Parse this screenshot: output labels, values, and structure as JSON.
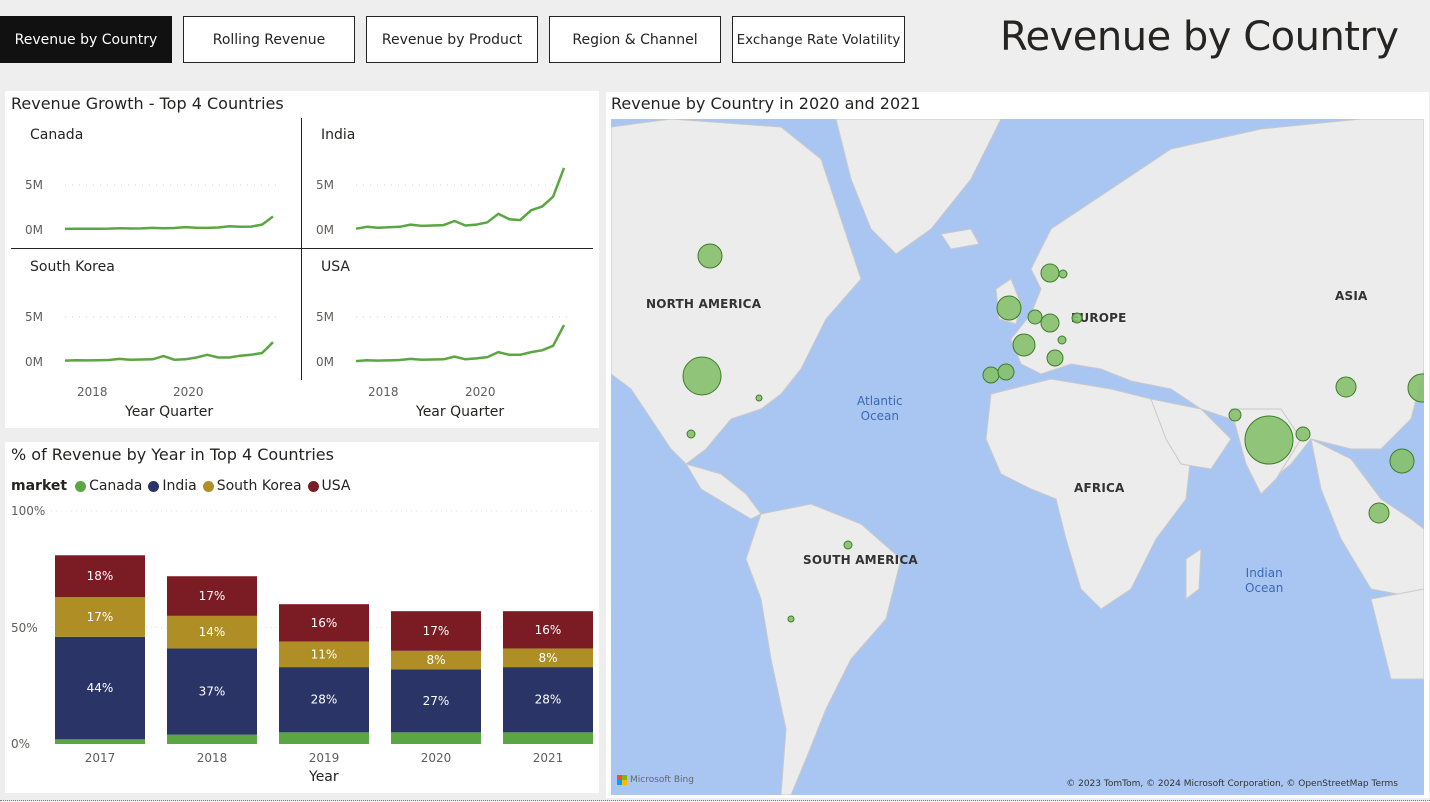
{
  "nav": {
    "buttons": [
      {
        "label": "Revenue by Country",
        "active": true
      },
      {
        "label": "Rolling Revenue",
        "active": false
      },
      {
        "label": "Revenue by Product",
        "active": false
      },
      {
        "label": "Region & Channel",
        "active": false
      },
      {
        "label": "Exchange Rate Volatility",
        "active": false
      }
    ]
  },
  "page_title": "Revenue by Country",
  "growth_panel": {
    "title": "Revenue Growth - Top 4 Countries",
    "y_ticks": [
      "5M",
      "0M"
    ],
    "x_ticks": [
      "2018",
      "2020"
    ],
    "x_title": "Year Quarter"
  },
  "share_panel": {
    "title": "% of Revenue by Year in Top 4 Countries",
    "legend_title": "market"
  },
  "map_panel": {
    "title": "Revenue by Country in 2020 and 2021",
    "regions": [
      "NORTH AMERICA",
      "EUROPE",
      "ASIA",
      "AFRICA",
      "SOUTH AMERICA"
    ],
    "oceans": [
      "Atlantic\nOcean",
      "Indian\nOcean"
    ],
    "attribution": "© 2023 TomTom, © 2024 Microsoft Corporation, © OpenStreetMap  Terms",
    "provider": "Microsoft Bing"
  },
  "colors": {
    "Canada": "#5ba642",
    "India": "#2b3467",
    "South Korea": "#b08e26",
    "USA": "#7b1c24",
    "line": "#5ba642",
    "bubble_fill": "#86c06c",
    "bubble_stroke": "#3e7d2a",
    "land": "#ededed",
    "ocean": "#a9c6f2"
  },
  "chart_data": [
    {
      "type": "line",
      "name": "small-multiples",
      "title": "Revenue Growth - Top 4 Countries",
      "xlabel": "Year Quarter",
      "x": [
        "2017 Q1",
        "2017 Q2",
        "2017 Q3",
        "2017 Q4",
        "2018 Q1",
        "2018 Q2",
        "2018 Q3",
        "2018 Q4",
        "2019 Q1",
        "2019 Q2",
        "2019 Q3",
        "2019 Q4",
        "2020 Q1",
        "2020 Q2",
        "2020 Q3",
        "2020 Q4",
        "2021 Q1",
        "2021 Q2",
        "2021 Q3",
        "2021 Q4"
      ],
      "ylim": [
        0,
        6500000
      ],
      "series": [
        {
          "name": "Canada",
          "values": [
            120000,
            150000,
            130000,
            140000,
            160000,
            200000,
            170000,
            180000,
            230000,
            200000,
            220000,
            320000,
            250000,
            230000,
            280000,
            420000,
            360000,
            380000,
            600000,
            1500000
          ]
        },
        {
          "name": "India",
          "values": [
            150000,
            350000,
            250000,
            300000,
            350000,
            600000,
            450000,
            500000,
            550000,
            1000000,
            500000,
            600000,
            850000,
            1800000,
            1200000,
            1100000,
            2200000,
            2600000,
            3700000,
            6900000
          ]
        },
        {
          "name": "South Korea",
          "values": [
            150000,
            200000,
            180000,
            200000,
            220000,
            350000,
            250000,
            280000,
            300000,
            650000,
            250000,
            300000,
            500000,
            800000,
            500000,
            500000,
            700000,
            800000,
            1000000,
            2200000
          ]
        },
        {
          "name": "USA",
          "values": [
            100000,
            200000,
            150000,
            180000,
            220000,
            350000,
            250000,
            280000,
            300000,
            600000,
            300000,
            400000,
            550000,
            1100000,
            800000,
            800000,
            1100000,
            1300000,
            1800000,
            4100000
          ]
        }
      ]
    },
    {
      "type": "bar",
      "name": "stacked-percent",
      "title": "% of Revenue by Year in Top 4 Countries",
      "xlabel": "Year",
      "categories": [
        "2017",
        "2018",
        "2019",
        "2020",
        "2021"
      ],
      "y_ticks": [
        "100%",
        "50%",
        "0%"
      ],
      "ylim": [
        0,
        100
      ],
      "series": [
        {
          "name": "Canada",
          "values": [
            2,
            4,
            5,
            5,
            5
          ]
        },
        {
          "name": "India",
          "values": [
            44,
            37,
            28,
            27,
            28
          ]
        },
        {
          "name": "South Korea",
          "values": [
            17,
            14,
            11,
            8,
            8
          ]
        },
        {
          "name": "USA",
          "values": [
            18,
            17,
            16,
            17,
            16
          ]
        }
      ],
      "labels": {
        "India": [
          "44%",
          "37%",
          "28%",
          "27%",
          "28%"
        ],
        "South Korea": [
          "17%",
          "14%",
          "11%",
          "8%",
          "8%"
        ],
        "USA": [
          "18%",
          "17%",
          "16%",
          "17%",
          "16%"
        ]
      }
    }
  ]
}
